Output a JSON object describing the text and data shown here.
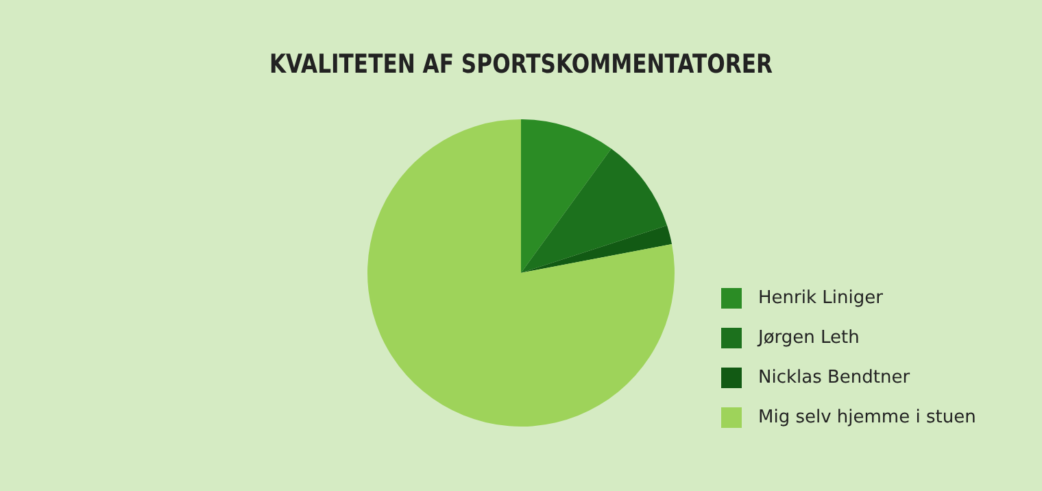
{
  "chart_data": {
    "type": "pie",
    "title": "KVALITETEN AF SPORTSKOMMENTATORER",
    "categories": [
      "Henrik Liniger",
      "Jørgen Leth",
      "Nicklas Bendtner",
      "Mig selv hjemme i stuen"
    ],
    "values": [
      10,
      10,
      2,
      78
    ],
    "colors": [
      "#2b8c25",
      "#1c711d",
      "#125a14",
      "#9ed35a"
    ],
    "legend": "right"
  }
}
